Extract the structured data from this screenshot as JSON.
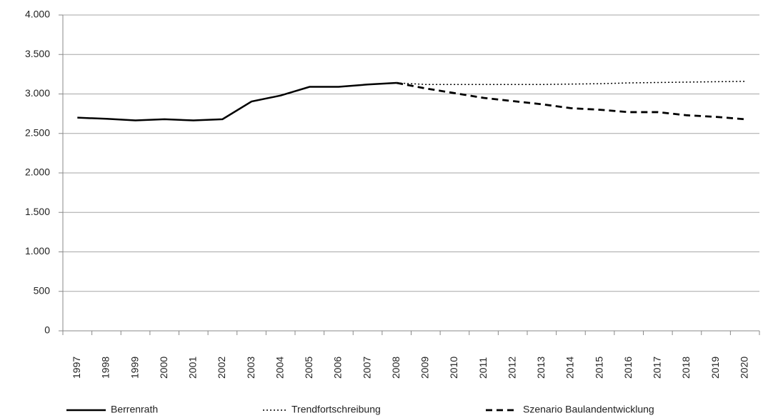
{
  "chart_data": {
    "type": "line",
    "categories": [
      "1997",
      "1998",
      "1999",
      "2000",
      "2001",
      "2002",
      "2003",
      "2004",
      "2005",
      "2006",
      "2007",
      "2008",
      "2009",
      "2010",
      "2011",
      "2012",
      "2013",
      "2014",
      "2015",
      "2016",
      "2017",
      "2018",
      "2019",
      "2020"
    ],
    "series": [
      {
        "name": "Berrenrath",
        "color": "#000000",
        "dash": "solid",
        "values": [
          2700,
          2685,
          2665,
          2680,
          2665,
          2680,
          2905,
          2980,
          3090,
          3090,
          3120,
          3140,
          null,
          null,
          null,
          null,
          null,
          null,
          null,
          null,
          null,
          null,
          null,
          null
        ]
      },
      {
        "name": "Trendfortschreibung",
        "color": "#000000",
        "dash": "dotted",
        "values": [
          null,
          null,
          null,
          null,
          null,
          null,
          null,
          null,
          null,
          null,
          null,
          3140,
          3120,
          3120,
          3120,
          3120,
          3120,
          3125,
          3130,
          3140,
          3145,
          3150,
          3155,
          3160
        ]
      },
      {
        "name": "Szenario Baulandentwicklung",
        "color": "#000000",
        "dash": "dashed",
        "values": [
          null,
          null,
          null,
          null,
          null,
          null,
          null,
          null,
          null,
          null,
          null,
          3140,
          3070,
          3010,
          2950,
          2910,
          2870,
          2820,
          2800,
          2770,
          2770,
          2730,
          2710,
          2680
        ]
      }
    ],
    "ylim": [
      0,
      4000
    ],
    "yticks": [
      0,
      500,
      {
        "value": 1000,
        "label": "1.000"
      },
      {
        "value": 1500,
        "label": "1.500"
      },
      {
        "value": 2000,
        "label": "2.000"
      },
      {
        "value": 2500,
        "label": "2.500"
      },
      {
        "value": 3000,
        "label": "3.000"
      },
      {
        "value": 3500,
        "label": "3.500"
      },
      {
        "value": 4000,
        "label": "4.000"
      }
    ],
    "grid": true,
    "legend": "bottom"
  }
}
